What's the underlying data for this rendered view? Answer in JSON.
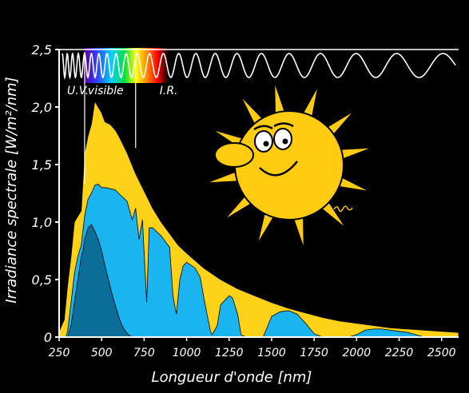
{
  "colors": {
    "background": "#000000",
    "extraterrestrial": "#ffd21a",
    "sea_level": "#1ab4f0",
    "absorbed": "#0a6e98",
    "axis": "#ffffff",
    "sun": "#ffcc11"
  },
  "chart_data": {
    "type": "area",
    "xlabel": "Longueur d'onde [nm]",
    "ylabel": "Irradiance spectrale [W/m²/nm]",
    "xlim": [
      250,
      2600
    ],
    "ylim": [
      0,
      2.5
    ],
    "x_ticks": [
      {
        "value": 250,
        "label": "250"
      },
      {
        "value": 500,
        "label": "500"
      },
      {
        "value": 750,
        "label": "750"
      },
      {
        "value": 1000,
        "label": "1000"
      },
      {
        "value": 1250,
        "label": "1250"
      },
      {
        "value": 1500,
        "label": "1500"
      },
      {
        "value": 1750,
        "label": "1750"
      },
      {
        "value": 2000,
        "label": "2000"
      },
      {
        "value": 2250,
        "label": "2250"
      },
      {
        "value": 2500,
        "label": "2500"
      }
    ],
    "y_ticks": [
      {
        "value": 0,
        "label": "0"
      },
      {
        "value": 0.5,
        "label": "0,5"
      },
      {
        "value": 1.0,
        "label": "1,0"
      },
      {
        "value": 1.5,
        "label": "1,5"
      },
      {
        "value": 2.0,
        "label": "2,0"
      },
      {
        "value": 2.5,
        "label": "2,5"
      }
    ],
    "bands": [
      {
        "label": "U.V.",
        "x_start": 250,
        "x_end": 400
      },
      {
        "label": "visible",
        "x_start": 400,
        "x_end": 700
      },
      {
        "label": "I.R.",
        "x_start": 700,
        "x_end": 2600
      }
    ],
    "band_dividers": [
      400,
      700
    ],
    "series": [
      {
        "x": [
          250,
          280,
          300,
          320,
          340,
          360,
          380,
          400,
          420,
          440,
          460,
          480,
          500,
          520,
          550,
          580,
          600,
          650,
          700,
          750,
          800,
          850,
          900,
          950,
          1000,
          1100,
          1200,
          1300,
          1400,
          1500,
          1600,
          1700,
          1800,
          1900,
          2000,
          2100,
          2200,
          2300,
          2400,
          2500,
          2600
        ],
        "values": [
          0.05,
          0.15,
          0.45,
          0.7,
          1.0,
          1.05,
          1.1,
          1.6,
          1.75,
          1.85,
          2.05,
          2.0,
          1.95,
          1.87,
          1.85,
          1.8,
          1.75,
          1.6,
          1.42,
          1.27,
          1.12,
          1.0,
          0.9,
          0.8,
          0.73,
          0.6,
          0.5,
          0.42,
          0.36,
          0.3,
          0.25,
          0.21,
          0.17,
          0.14,
          0.12,
          0.1,
          0.08,
          0.07,
          0.06,
          0.05,
          0.04
        ]
      },
      {
        "x": [
          250,
          290,
          300,
          320,
          340,
          360,
          380,
          400,
          420,
          440,
          460,
          480,
          500,
          520,
          550,
          580,
          600,
          650,
          680,
          700,
          720,
          740,
          760,
          765,
          780,
          800,
          850,
          900,
          920,
          940,
          960,
          980,
          1000,
          1050,
          1080,
          1100,
          1120,
          1140,
          1150,
          1180,
          1200,
          1250,
          1270,
          1300,
          1320,
          1350,
          1400,
          1450,
          1500,
          1550,
          1600,
          1650,
          1700,
          1750,
          1800,
          1850,
          1900,
          1950,
          2000,
          2050,
          2100,
          2150,
          2200,
          2250,
          2300,
          2350,
          2400,
          2450,
          2500,
          2550,
          2600
        ],
        "values": [
          0,
          0,
          0.05,
          0.3,
          0.55,
          0.7,
          0.8,
          1.05,
          1.2,
          1.25,
          1.32,
          1.33,
          1.3,
          1.3,
          1.29,
          1.28,
          1.25,
          1.18,
          1.02,
          1.12,
          0.85,
          1.02,
          0.45,
          0.3,
          0.95,
          0.95,
          0.88,
          0.78,
          0.35,
          0.2,
          0.5,
          0.62,
          0.65,
          0.6,
          0.52,
          0.35,
          0.2,
          0.05,
          0.02,
          0.1,
          0.28,
          0.36,
          0.34,
          0.2,
          0.02,
          0,
          0,
          0,
          0.18,
          0.22,
          0.23,
          0.2,
          0.12,
          0.03,
          0,
          0,
          0,
          0,
          0.02,
          0.06,
          0.07,
          0.07,
          0.06,
          0.05,
          0.04,
          0.02,
          0,
          0,
          0,
          0,
          0
        ]
      },
      {
        "x": [
          250,
          300,
          320,
          340,
          360,
          380,
          390,
          400,
          420,
          440,
          460,
          480,
          500,
          520,
          540,
          560,
          580,
          600,
          620,
          640,
          660,
          680,
          700
        ],
        "values": [
          0,
          0,
          0.1,
          0.3,
          0.5,
          0.7,
          0.75,
          0.85,
          0.95,
          0.98,
          0.92,
          0.85,
          0.75,
          0.62,
          0.5,
          0.38,
          0.28,
          0.18,
          0.1,
          0.05,
          0.02,
          0,
          0
        ]
      }
    ]
  }
}
